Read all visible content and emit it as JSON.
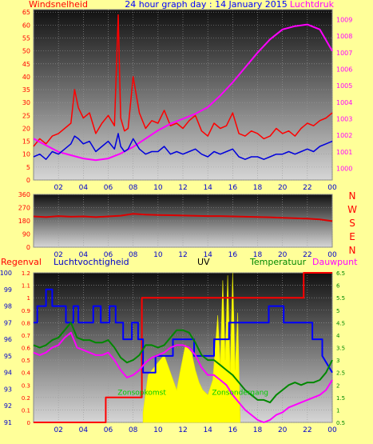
{
  "chart_data": [
    {
      "type": "line",
      "title": "24 hour graph day : 14 January 2015",
      "left_axis_label": "Windsnelheid",
      "right_axis_label": "Luchtdruk",
      "x_ticks": [
        "02",
        "04",
        "06",
        "08",
        "10",
        "12",
        "14",
        "16",
        "18",
        "20",
        "22",
        "00"
      ],
      "y_left_ticks": [
        0,
        5,
        10,
        15,
        20,
        25,
        30,
        35,
        40,
        45,
        50,
        55,
        60,
        65
      ],
      "y_left_lim": [
        0,
        66
      ],
      "y_right_ticks": [
        1000,
        1001,
        1002,
        1003,
        1004,
        1005,
        1006,
        1007,
        1008,
        1009
      ],
      "y_right_lim": [
        999.3,
        1009.6
      ],
      "series": [
        {
          "name": "Windsnelheid",
          "axis": "left",
          "color": "#ff0000",
          "x": [
            0,
            0.5,
            1,
            1.5,
            2,
            2.5,
            3,
            3.3,
            3.6,
            4,
            4.5,
            5,
            5.5,
            6,
            6.5,
            6.8,
            7,
            7.3,
            7.6,
            8,
            8.5,
            9,
            9.5,
            10,
            10.5,
            11,
            11.5,
            12,
            12.5,
            13,
            13.5,
            14,
            14.5,
            15,
            15.5,
            16,
            16.5,
            17,
            17.5,
            18,
            18.5,
            19,
            19.5,
            20,
            20.5,
            21,
            21.5,
            22,
            22.5,
            23,
            23.5,
            24
          ],
          "values": [
            13,
            16,
            14,
            17,
            18,
            20,
            22,
            35,
            28,
            24,
            26,
            18,
            22,
            25,
            21,
            64,
            24,
            19,
            20,
            40,
            26,
            20,
            23,
            22,
            27,
            21,
            22,
            20,
            23,
            25,
            19,
            17,
            22,
            20,
            21,
            26,
            18,
            17,
            19,
            18,
            16,
            17,
            20,
            18,
            19,
            17,
            20,
            22,
            21,
            23,
            24,
            26
          ]
        },
        {
          "name": "Luchtdruk",
          "axis": "right",
          "color": "#ff00ff",
          "x": [
            0,
            1,
            2,
            3,
            4,
            5,
            6,
            7,
            8,
            9,
            10,
            11,
            12,
            13,
            14,
            15,
            16,
            17,
            18,
            19,
            20,
            21,
            22,
            23,
            24
          ],
          "values": [
            1001.8,
            1001.4,
            1001.0,
            1000.8,
            1000.6,
            1000.5,
            1000.6,
            1000.9,
            1001.3,
            1001.8,
            1002.3,
            1002.7,
            1003.0,
            1003.3,
            1003.7,
            1004.4,
            1005.2,
            1006.1,
            1007.0,
            1007.8,
            1008.4,
            1008.6,
            1008.7,
            1008.4,
            1007.1
          ]
        },
        {
          "color": "#0000dd",
          "axis": "left",
          "x": [
            0,
            0.5,
            1,
            1.5,
            2,
            2.5,
            3,
            3.3,
            3.6,
            4,
            4.5,
            5,
            5.5,
            6,
            6.5,
            6.8,
            7,
            7.3,
            7.6,
            8,
            8.5,
            9,
            9.5,
            10,
            10.5,
            11,
            11.5,
            12,
            12.5,
            13,
            13.5,
            14,
            14.5,
            15,
            15.5,
            16,
            16.5,
            17,
            17.5,
            18,
            18.5,
            19,
            19.5,
            20,
            20.5,
            21,
            21.5,
            22,
            22.5,
            23,
            23.5,
            24
          ],
          "values": [
            9,
            10,
            8,
            11,
            10,
            12,
            14,
            17,
            16,
            14,
            15,
            11,
            13,
            15,
            12,
            18,
            13,
            11,
            12,
            16,
            12,
            10,
            11,
            11,
            13,
            10,
            11,
            10,
            11,
            12,
            10,
            9,
            11,
            10,
            11,
            12,
            9,
            8,
            9,
            9,
            8,
            9,
            10,
            10,
            11,
            10,
            11,
            12,
            11,
            13,
            14,
            15
          ]
        }
      ]
    },
    {
      "type": "line",
      "x_ticks": [
        "02",
        "04",
        "06",
        "08",
        "10",
        "12",
        "14",
        "16",
        "18",
        "20",
        "22",
        "00"
      ],
      "y_ticks": [
        0,
        90,
        180,
        270,
        360
      ],
      "ylim": [
        0,
        360
      ],
      "compass_labels": [
        "N",
        "W",
        "S",
        "E",
        "N"
      ],
      "series": [
        {
          "color": "#dd0000",
          "x": [
            0,
            1,
            2,
            3,
            4,
            5,
            6,
            7,
            8,
            9,
            10,
            11,
            12,
            13,
            14,
            15,
            16,
            17,
            18,
            19,
            20,
            21,
            22,
            23,
            24
          ],
          "values": [
            210,
            205,
            212,
            208,
            210,
            205,
            210,
            215,
            228,
            222,
            220,
            218,
            216,
            214,
            212,
            212,
            210,
            208,
            206,
            204,
            200,
            198,
            195,
            190,
            178
          ]
        }
      ]
    },
    {
      "type": "line",
      "headers": [
        "Regenval",
        "Luchtvochtigheid",
        "UV",
        "Temperatuur",
        "Dauwpunt"
      ],
      "x_ticks": [
        "02",
        "04",
        "06",
        "08",
        "10",
        "12",
        "14",
        "16",
        "18",
        "20",
        "22",
        "00"
      ],
      "rain_ticks": [
        "0",
        "0.1",
        "0.2",
        "0.3",
        "0.4",
        "0.5",
        "0.6",
        "0.7",
        "0.8",
        "0.9",
        "1",
        "1.1",
        "1.2"
      ],
      "rain_lim": [
        0,
        1.2
      ],
      "humidity_ticks": [
        91,
        92,
        93,
        94,
        95,
        96,
        97,
        98,
        99,
        100
      ],
      "humidity_lim": [
        91,
        100
      ],
      "temp_ticks": [
        "0.5",
        "1",
        "1.5",
        "2",
        "2.5",
        "3",
        "3.5",
        "4",
        "4.5",
        "5",
        "5.5",
        "6",
        "6.5"
      ],
      "temp_lim": [
        0.5,
        6.5
      ],
      "annotations": [
        {
          "text": "Zonsopkomst",
          "x": 8.7,
          "y_temp": 1.6
        },
        {
          "text": "Zonsondergang",
          "x": 16.6,
          "y_temp": 1.6
        }
      ],
      "series": [
        {
          "name": "Regenval",
          "axis": "rain",
          "color": "#ff0000",
          "step": true,
          "x": [
            0,
            5.8,
            5.8,
            8.7,
            8.7,
            21.7,
            21.7,
            24
          ],
          "values": [
            0,
            0,
            0.2,
            0.2,
            1.0,
            1.0,
            1.2,
            1.2
          ]
        },
        {
          "name": "Luchtvochtigheid",
          "axis": "humidity",
          "color": "#0000ff",
          "step": true,
          "x": [
            0,
            0.3,
            0.3,
            1,
            1,
            1.5,
            1.5,
            2.6,
            2.6,
            3.2,
            3.2,
            3.6,
            3.6,
            4.8,
            4.8,
            5.4,
            5.4,
            6.1,
            6.1,
            6.6,
            6.6,
            7.2,
            7.2,
            7.9,
            7.9,
            8.4,
            8.4,
            8.8,
            8.8,
            9.8,
            9.8,
            10.4,
            10.4,
            11.2,
            11.2,
            12.9,
            12.9,
            13.8,
            13.8,
            14.5,
            14.5,
            15.7,
            15.7,
            18.9,
            18.9,
            20.1,
            20.1,
            20.8,
            20.8,
            22.4,
            22.4,
            23.2,
            23.2,
            24
          ],
          "values": [
            97,
            97,
            98,
            98,
            99,
            99,
            98,
            98,
            97,
            97,
            98,
            98,
            97,
            97,
            98,
            98,
            97,
            97,
            98,
            98,
            97,
            97,
            96,
            96,
            97,
            97,
            96,
            96,
            94,
            94,
            95,
            95,
            95,
            95,
            96,
            96,
            95,
            95,
            95,
            95,
            96,
            96,
            97,
            97,
            98,
            98,
            97,
            97,
            97,
            97,
            96,
            96,
            95,
            94
          ]
        },
        {
          "name": "UV",
          "axis": "temp",
          "color": "#ffff00",
          "x": [
            8.8,
            9.2,
            10,
            10.5,
            11,
            11.5,
            11.8,
            12.2,
            12.7,
            13,
            13.3,
            13.6,
            14,
            14.4,
            14.8,
            15,
            15.2,
            15.4,
            15.6,
            15.8,
            16,
            16.2,
            16.4,
            16.6
          ],
          "values": [
            0.9,
            2.4,
            2.9,
            3.2,
            2.5,
            1.8,
            2.6,
            3.6,
            3.3,
            2.6,
            2.1,
            1.8,
            1.6,
            2.2,
            4.8,
            2.8,
            6.2,
            3.0,
            6.4,
            2.5,
            6.5,
            2.6,
            4.9,
            0.6
          ]
        },
        {
          "name": "Temperatuur",
          "axis": "temp",
          "color": "#008800",
          "x": [
            0,
            0.5,
            1,
            1.5,
            2,
            2.5,
            3,
            3.5,
            4,
            4.5,
            5,
            5.5,
            6,
            6.5,
            7,
            7.5,
            8,
            8.5,
            9,
            9.5,
            10,
            10.5,
            11,
            11.5,
            12,
            12.5,
            13,
            13.5,
            14,
            14.5,
            15,
            15.5,
            16,
            16.5,
            17,
            17.5,
            18,
            18.5,
            19,
            19.5,
            20,
            20.5,
            21,
            21.5,
            22,
            22.5,
            23,
            23.5,
            24
          ],
          "values": [
            3.6,
            3.5,
            3.6,
            3.8,
            3.9,
            4.2,
            4.5,
            3.9,
            3.8,
            3.8,
            3.7,
            3.7,
            3.8,
            3.5,
            3.1,
            2.9,
            3.0,
            3.2,
            3.6,
            3.6,
            3.5,
            3.6,
            3.9,
            4.2,
            4.2,
            4.1,
            3.7,
            3.2,
            3.0,
            3.0,
            2.8,
            2.6,
            2.4,
            2.1,
            1.8,
            1.6,
            1.4,
            1.4,
            1.3,
            1.6,
            1.8,
            2.0,
            2.1,
            2.0,
            2.1,
            2.1,
            2.2,
            2.5,
            3.0
          ]
        },
        {
          "name": "Dauwpunt",
          "axis": "temp",
          "color": "#ff00ff",
          "x": [
            0,
            0.5,
            1,
            1.5,
            2,
            2.5,
            3,
            3.5,
            4,
            4.5,
            5,
            5.5,
            6,
            6.5,
            7,
            7.5,
            8,
            8.5,
            9,
            9.5,
            10,
            10.5,
            11,
            11.5,
            12,
            12.5,
            13,
            13.5,
            14,
            14.5,
            15,
            15.5,
            16,
            16.5,
            17,
            17.5,
            18,
            18.5,
            19,
            19.5,
            20,
            20.5,
            21,
            21.5,
            22,
            22.5,
            23,
            23.5,
            24
          ],
          "values": [
            3.3,
            3.2,
            3.3,
            3.5,
            3.6,
            3.9,
            4.1,
            3.5,
            3.4,
            3.3,
            3.2,
            3.2,
            3.3,
            3.0,
            2.6,
            2.3,
            2.4,
            2.6,
            2.9,
            3.1,
            3.2,
            3.3,
            3.5,
            3.6,
            3.6,
            3.5,
            3.2,
            2.7,
            2.4,
            2.4,
            2.2,
            2.0,
            1.6,
            1.3,
            1.0,
            0.8,
            0.6,
            0.5,
            0.6,
            0.8,
            0.9,
            1.1,
            1.2,
            1.3,
            1.4,
            1.5,
            1.6,
            1.8,
            2.2
          ]
        }
      ]
    }
  ]
}
